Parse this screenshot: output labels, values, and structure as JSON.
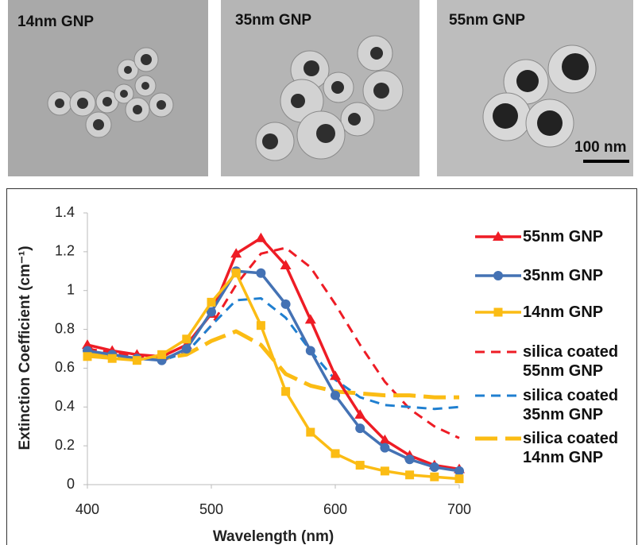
{
  "images": [
    "14nm GNP",
    "35nm GNP",
    "55nm GNP"
  ],
  "scale_bar": "100 nm",
  "chart_data": {
    "type": "line",
    "x_label": "Wavelength (nm)",
    "y_label": "Extinction Coefficient (cm⁻¹)",
    "x": [
      400,
      420,
      440,
      460,
      480,
      500,
      520,
      540,
      560,
      580,
      600,
      620,
      640,
      660,
      680,
      700
    ],
    "xlim": [
      400,
      700
    ],
    "xticks": [
      400,
      500,
      600,
      700
    ],
    "ylim": [
      0,
      1.4
    ],
    "yticks": [
      0,
      0.2,
      0.4,
      0.6,
      0.8,
      1,
      1.2,
      1.4
    ],
    "series": [
      {
        "name": "55nm GNP",
        "color": "#ee1c25",
        "marker": "triangle",
        "dash": "solid",
        "values": [
          0.72,
          0.69,
          0.67,
          0.66,
          0.72,
          0.88,
          1.19,
          1.27,
          1.13,
          0.85,
          0.56,
          0.36,
          0.23,
          0.15,
          0.1,
          0.08
        ]
      },
      {
        "name": "35nm GNP",
        "color": "#4472b4",
        "marker": "circle",
        "dash": "solid",
        "values": [
          0.69,
          0.67,
          0.65,
          0.64,
          0.7,
          0.89,
          1.1,
          1.09,
          0.93,
          0.69,
          0.46,
          0.29,
          0.19,
          0.13,
          0.09,
          0.07
        ]
      },
      {
        "name": "14nm GNP",
        "color": "#fbbc14",
        "marker": "square",
        "dash": "solid",
        "values": [
          0.66,
          0.65,
          0.64,
          0.67,
          0.75,
          0.94,
          1.09,
          0.82,
          0.48,
          0.27,
          0.16,
          0.1,
          0.07,
          0.05,
          0.04,
          0.03
        ]
      },
      {
        "name": "silica coated 55nm GNP",
        "color": "#ee1c25",
        "marker": "none",
        "dash": "short",
        "values": [
          0.7,
          0.68,
          0.66,
          0.65,
          0.68,
          0.82,
          1.03,
          1.19,
          1.22,
          1.12,
          0.93,
          0.72,
          0.53,
          0.39,
          0.3,
          0.24
        ]
      },
      {
        "name": "silica coated 35nm GNP",
        "color": "#1f7fd0",
        "marker": "none",
        "dash": "short",
        "values": [
          0.68,
          0.66,
          0.65,
          0.64,
          0.68,
          0.82,
          0.95,
          0.96,
          0.86,
          0.69,
          0.54,
          0.45,
          0.41,
          0.4,
          0.39,
          0.4
        ]
      },
      {
        "name": "silica coated 14nm GNP",
        "color": "#fbbc14",
        "marker": "none",
        "dash": "long",
        "values": [
          0.67,
          0.66,
          0.65,
          0.65,
          0.67,
          0.74,
          0.79,
          0.72,
          0.57,
          0.51,
          0.48,
          0.47,
          0.46,
          0.46,
          0.45,
          0.45
        ]
      }
    ]
  }
}
